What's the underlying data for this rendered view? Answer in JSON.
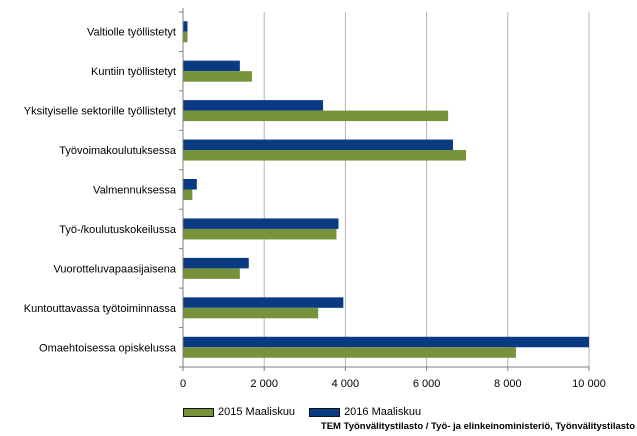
{
  "chart_data": {
    "type": "bar",
    "orientation": "horizontal",
    "categories": [
      "Valtiolle työllistetyt",
      "Kuntiin työllistetyt",
      "Yksityiselle sektorille työllistetyt",
      "Työvoimakoulutuksessa",
      "Valmennuksessa",
      "Työ-/koulutuskokeilussa",
      "Vuorotteluvapaasijaisena",
      "Kuntouttavassa työtoiminnassa",
      "Omaehtoisessa opiskelussa"
    ],
    "series": [
      {
        "name": "2016 Maaliskuu",
        "color": "#0a3a82",
        "values": [
          110,
          1400,
          3450,
          6650,
          340,
          3830,
          1620,
          3950,
          10000
        ]
      },
      {
        "name": "2015 Maaliskuu",
        "color": "#76933c",
        "values": [
          110,
          1700,
          6530,
          6970,
          230,
          3780,
          1400,
          3330,
          8200
        ]
      }
    ],
    "xlim": [
      0,
      10000
    ],
    "xticks": [
      0,
      2000,
      4000,
      6000,
      8000,
      10000
    ],
    "xtick_labels": [
      "0",
      "2 000",
      "4 000",
      "6 000",
      "8 000",
      "10 000"
    ],
    "grid": true,
    "legend_placement": "bottom",
    "legend_order": [
      "2015 Maaliskuu",
      "2016 Maaliskuu"
    ]
  },
  "source_note": "TEM Työnvälitystilasto / Työ- ja elinkeinoministeriö, Työnvälitystilasto"
}
